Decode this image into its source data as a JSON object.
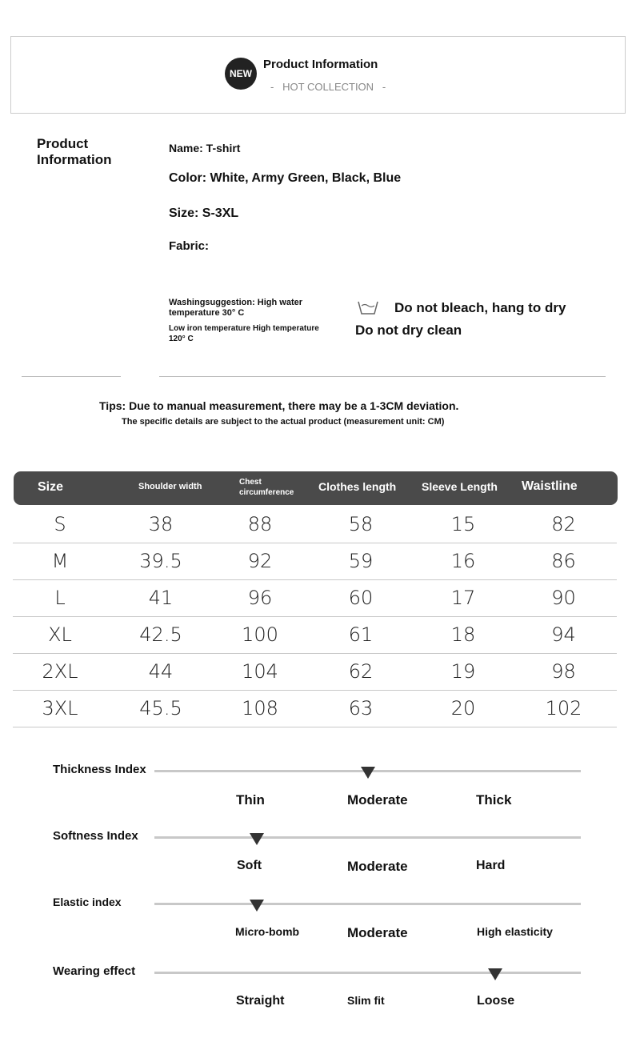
{
  "header": {
    "badge": "NEW",
    "title": "Product Information",
    "subtitle": "-   HOT COLLECTION   -"
  },
  "info": {
    "section_title": "Product Information",
    "name": "Name: T-shirt",
    "color": "Color: White, Army Green, Black, Blue",
    "size": "Size: S-3XL",
    "fabric": "Fabric:",
    "wash1": "Washingsuggestion: High water temperature 30° C",
    "wash2": "Low iron temperature High temperature 120° C",
    "care1": "Do not bleach, hang to dry",
    "care2": "Do not dry clean",
    "care_icon": "wash-basin-icon"
  },
  "tips": {
    "line1": "Tips: Due to manual measurement, there may be a 1-3CM deviation.",
    "line2": "The specific details are subject to the actual product (measurement unit: CM)"
  },
  "size_table": {
    "headers": [
      "Size",
      "Shoulder width",
      "Chest circumference",
      "Clothes length",
      "Sleeve Length",
      "Waistline"
    ],
    "rows": [
      [
        "S",
        "38",
        "88",
        "58",
        "15",
        "82"
      ],
      [
        "M",
        "39.5",
        "92",
        "59",
        "16",
        "86"
      ],
      [
        "L",
        "41",
        "96",
        "60",
        "17",
        "90"
      ],
      [
        "XL",
        "42.5",
        "100",
        "61",
        "18",
        "94"
      ],
      [
        "2XL",
        "44",
        "104",
        "62",
        "19",
        "98"
      ],
      [
        "3XL",
        "45.5",
        "108",
        "63",
        "20",
        "102"
      ]
    ]
  },
  "indices": [
    {
      "title": "Thickness Index",
      "labels": [
        "Thin",
        "Moderate",
        "Thick"
      ],
      "level": 0.5
    },
    {
      "title": "Softness Index",
      "labels": [
        "Soft",
        "Moderate",
        "Hard"
      ],
      "level": 0.24
    },
    {
      "title": "Elastic index",
      "labels": [
        "Micro-bomb",
        "Moderate",
        "High elasticity"
      ],
      "level": 0.24
    },
    {
      "title": "Wearing effect",
      "labels": [
        "Straight",
        "Slim fit",
        "Loose"
      ],
      "level": 0.8
    }
  ]
}
